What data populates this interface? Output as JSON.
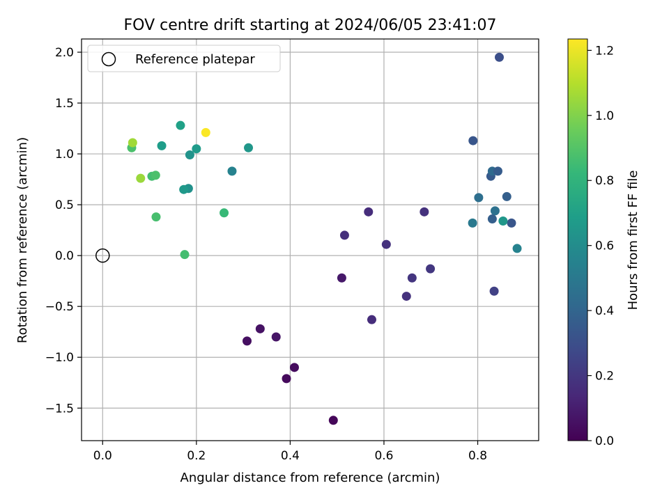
{
  "chart_data": {
    "type": "scatter",
    "title": "FOV centre drift starting at 2024/06/05 23:41:07",
    "xlabel": "Angular distance from reference (arcmin)",
    "ylabel": "Rotation from reference (arcmin)",
    "colorbar_label": "Hours from first FF file",
    "xlim": [
      -0.045,
      0.93
    ],
    "ylim": [
      -1.82,
      2.13
    ],
    "clim": [
      0.0,
      1.235
    ],
    "colormap": "viridis",
    "grid": true,
    "legend_position": "top-left",
    "x_ticks": [
      0.0,
      0.2,
      0.4,
      0.6,
      0.8
    ],
    "x_tick_labels": [
      "0.0",
      "0.2",
      "0.4",
      "0.6",
      "0.8"
    ],
    "y_ticks": [
      -1.5,
      -1.0,
      -0.5,
      0.0,
      0.5,
      1.0,
      1.5,
      2.0
    ],
    "y_tick_labels": [
      "−1.5",
      "−1.0",
      "−0.5",
      "0.0",
      "0.5",
      "1.0",
      "1.5",
      "2.0"
    ],
    "colorbar_ticks": [
      0.0,
      0.2,
      0.4,
      0.6,
      0.8,
      1.0,
      1.2
    ],
    "colorbar_tick_labels": [
      "0.0",
      "0.2",
      "0.4",
      "0.6",
      "0.8",
      "1.0",
      "1.2"
    ],
    "reference": {
      "name": "Reference platepar",
      "x": 0.0,
      "y": 0.0
    },
    "points": [
      {
        "x": 0.492,
        "y": -1.62,
        "c": 0.02
      },
      {
        "x": 0.392,
        "y": -1.21,
        "c": 0.03
      },
      {
        "x": 0.409,
        "y": -1.1,
        "c": 0.04
      },
      {
        "x": 0.308,
        "y": -0.84,
        "c": 0.05
      },
      {
        "x": 0.336,
        "y": -0.72,
        "c": 0.06
      },
      {
        "x": 0.37,
        "y": -0.8,
        "c": 0.07
      },
      {
        "x": 0.51,
        "y": -0.22,
        "c": 0.08
      },
      {
        "x": 0.574,
        "y": -0.63,
        "c": 0.16
      },
      {
        "x": 0.648,
        "y": -0.4,
        "c": 0.18
      },
      {
        "x": 0.66,
        "y": -0.22,
        "c": 0.19
      },
      {
        "x": 0.699,
        "y": -0.13,
        "c": 0.2
      },
      {
        "x": 0.605,
        "y": 0.11,
        "c": 0.18
      },
      {
        "x": 0.516,
        "y": 0.2,
        "c": 0.17
      },
      {
        "x": 0.567,
        "y": 0.43,
        "c": 0.16
      },
      {
        "x": 0.686,
        "y": 0.43,
        "c": 0.18
      },
      {
        "x": 0.835,
        "y": -0.35,
        "c": 0.24
      },
      {
        "x": 0.846,
        "y": 1.95,
        "c": 0.3
      },
      {
        "x": 0.79,
        "y": 1.13,
        "c": 0.33
      },
      {
        "x": 0.828,
        "y": 0.78,
        "c": 0.35
      },
      {
        "x": 0.831,
        "y": 0.83,
        "c": 0.42
      },
      {
        "x": 0.843,
        "y": 0.83,
        "c": 0.36
      },
      {
        "x": 0.862,
        "y": 0.58,
        "c": 0.37
      },
      {
        "x": 0.802,
        "y": 0.57,
        "c": 0.45
      },
      {
        "x": 0.837,
        "y": 0.44,
        "c": 0.46
      },
      {
        "x": 0.831,
        "y": 0.36,
        "c": 0.37
      },
      {
        "x": 0.789,
        "y": 0.32,
        "c": 0.5
      },
      {
        "x": 0.872,
        "y": 0.32,
        "c": 0.33
      },
      {
        "x": 0.884,
        "y": 0.07,
        "c": 0.55
      },
      {
        "x": 0.854,
        "y": 0.34,
        "c": 0.65
      },
      {
        "x": 0.276,
        "y": 0.83,
        "c": 0.55
      },
      {
        "x": 0.183,
        "y": 0.66,
        "c": 0.62
      },
      {
        "x": 0.173,
        "y": 0.65,
        "c": 0.66
      },
      {
        "x": 0.186,
        "y": 0.99,
        "c": 0.63
      },
      {
        "x": 0.2,
        "y": 1.05,
        "c": 0.67
      },
      {
        "x": 0.311,
        "y": 1.06,
        "c": 0.65
      },
      {
        "x": 0.126,
        "y": 1.08,
        "c": 0.68
      },
      {
        "x": 0.166,
        "y": 1.28,
        "c": 0.7
      },
      {
        "x": 0.259,
        "y": 0.42,
        "c": 0.83
      },
      {
        "x": 0.175,
        "y": 0.01,
        "c": 0.86
      },
      {
        "x": 0.114,
        "y": 0.38,
        "c": 0.87
      },
      {
        "x": 0.062,
        "y": 1.06,
        "c": 0.88
      },
      {
        "x": 0.105,
        "y": 0.78,
        "c": 0.86
      },
      {
        "x": 0.113,
        "y": 0.79,
        "c": 0.88
      },
      {
        "x": 0.081,
        "y": 0.76,
        "c": 1.05
      },
      {
        "x": 0.064,
        "y": 1.11,
        "c": 1.06
      },
      {
        "x": 0.22,
        "y": 1.21,
        "c": 1.23
      }
    ]
  }
}
